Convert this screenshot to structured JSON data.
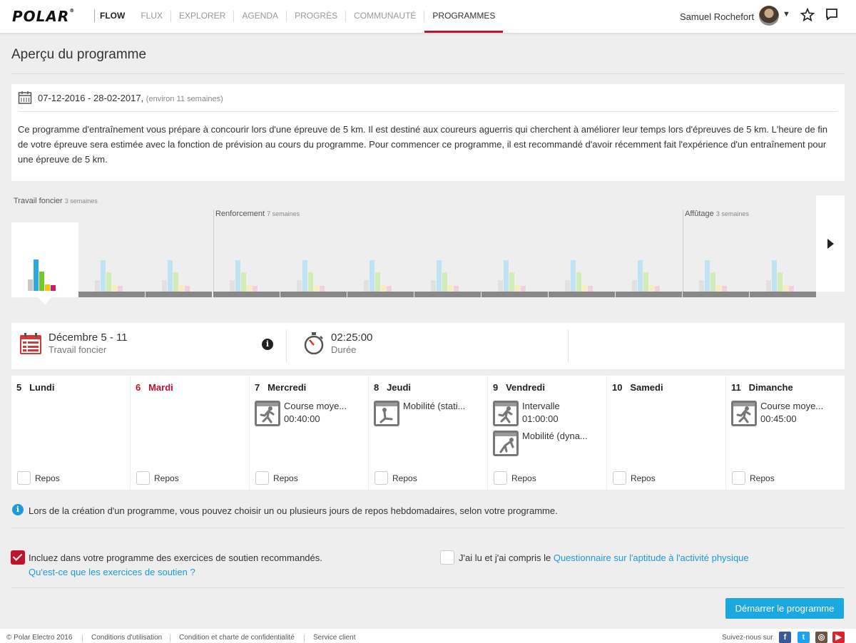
{
  "nav": {
    "logo": "POLAR",
    "items": [
      "FLOW",
      "FLUX",
      "EXPLORER",
      "AGENDA",
      "PROGRÈS",
      "COMMUNAUTÉ",
      "PROGRAMMES"
    ],
    "active": "PROGRAMMES",
    "user_name": "Samuel Rochefort"
  },
  "page_title": "Aperçu du programme",
  "program": {
    "dates": "07-12-2016 - 28-02-2017,",
    "weeks_note": "(environ 11 semaines)",
    "description": "Ce programme d'entraînement vous prépare à concourir lors d'une épreuve de 5 km. Il est destiné aux coureurs aguerris qui cherchent à améliorer leur temps lors d'épreuves de 5 km. L'heure de fin de votre épreuve sera estimée avec la fonction de prévision au cours du programme. Pour commencer ce programme, il est recommandé d'avoir récemment fait l'expérience d'un entraînement pour une épreuve de 5 km."
  },
  "phases": [
    {
      "name": "Travail foncier",
      "duration": "3 semaines"
    },
    {
      "name": "Renforcement",
      "duration": "7 semaines"
    },
    {
      "name": "Affûtage",
      "duration": "3 semaines"
    }
  ],
  "week_summary": {
    "title": "Décembre 5 - 11",
    "phase": "Travail foncier",
    "duration_value": "02:25:00",
    "duration_label": "Durée"
  },
  "days": [
    {
      "num": "5",
      "name": "Lundi",
      "today": false,
      "activities": [],
      "rest_label": "Repos"
    },
    {
      "num": "6",
      "name": "Mardi",
      "today": true,
      "activities": [],
      "rest_label": "Repos"
    },
    {
      "num": "7",
      "name": "Mercredi",
      "today": false,
      "activities": [
        {
          "name": "Course moye...",
          "time": "00:40:00",
          "icon": "runner-icon"
        }
      ],
      "rest_label": "Repos"
    },
    {
      "num": "8",
      "name": "Jeudi",
      "today": false,
      "activities": [
        {
          "name": "Mobilité (stati...",
          "time": "",
          "icon": "mobility-static-icon"
        }
      ],
      "rest_label": "Repos"
    },
    {
      "num": "9",
      "name": "Vendredi",
      "today": false,
      "activities": [
        {
          "name": "Intervalle",
          "time": "01:00:00",
          "icon": "runner-icon"
        },
        {
          "name": "Mobilité (dyna...",
          "time": "",
          "icon": "mobility-dynamic-icon"
        }
      ],
      "rest_label": "Repos"
    },
    {
      "num": "10",
      "name": "Samedi",
      "today": false,
      "activities": [],
      "rest_label": "Repos"
    },
    {
      "num": "11",
      "name": "Dimanche",
      "today": false,
      "activities": [
        {
          "name": "Course moye...",
          "time": "00:45:00",
          "icon": "runner-icon"
        }
      ],
      "rest_label": "Repos"
    }
  ],
  "notice": "Lors de la création d'un programme, vous pouvez choisir un ou plusieurs jours de repos hebdomadaires, selon votre programme.",
  "support": {
    "label": "Incluez dans votre programme des exercices de soutien recommandés.",
    "link": "Qu'est-ce que les exercices de soutien ?",
    "checked": true
  },
  "questionnaire": {
    "prefix": "J'ai lu et j'ai compris le ",
    "link": "Questionnaire sur l'aptitude à l'activité physique",
    "checked": false
  },
  "start_button": "Démarrer le programme",
  "footer": {
    "copyright": "© Polar Electro 2016",
    "links": [
      "Conditions d'utilisation",
      "Condition et charte de confidentialité",
      "Service client"
    ],
    "follow": "Suivez-nous sur",
    "socials": [
      "facebook-icon",
      "twitter-icon",
      "instagram-icon",
      "youtube-icon"
    ]
  },
  "colors": {
    "accent_red": "#c0132b",
    "link_blue": "#1a9bd7",
    "button_blue": "#1aa8e0"
  }
}
